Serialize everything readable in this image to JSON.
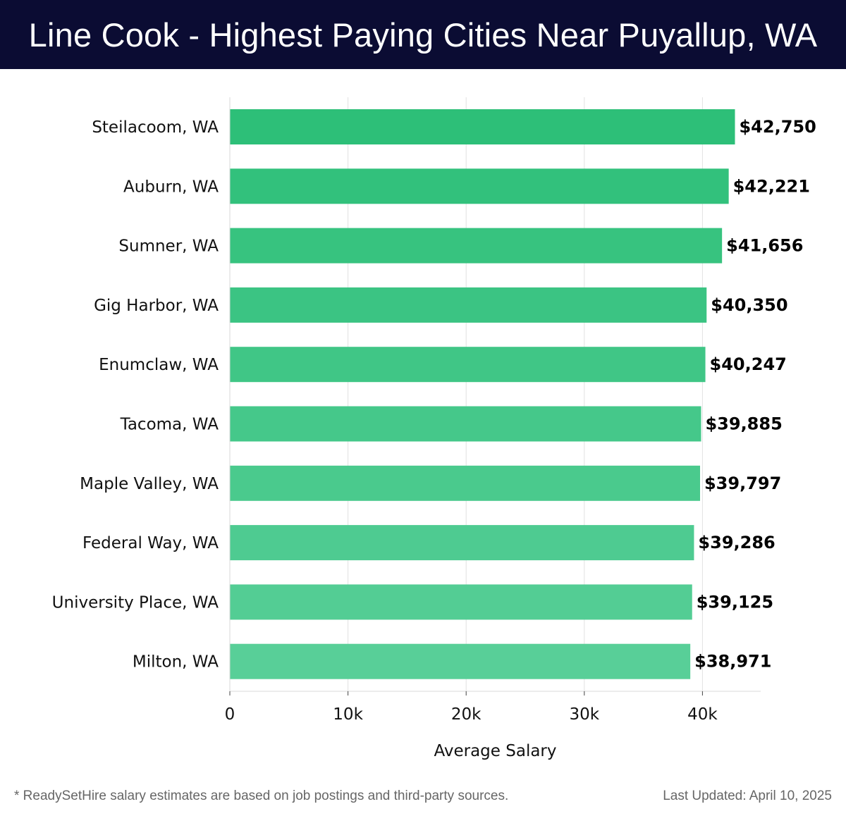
{
  "header": {
    "title": "Line Cook - Highest Paying Cities Near Puyallup, WA"
  },
  "footer": {
    "note": "* ReadySetHire salary estimates are based on job postings and third-party sources.",
    "updated": "Last Updated: April 10, 2025"
  },
  "colors": {
    "header_bg": "#0b0c33",
    "bar_top": "#2dbf78",
    "bar_bottom": "#58cf98",
    "grid": "#e2e2e2"
  },
  "chart_data": {
    "type": "bar",
    "orientation": "horizontal",
    "title": "Line Cook - Highest Paying Cities Near Puyallup, WA",
    "xlabel": "Average Salary",
    "ylabel": "",
    "xlim": [
      0,
      45000
    ],
    "xticks": [
      {
        "value": 0,
        "label": "0"
      },
      {
        "value": 10000,
        "label": "10k"
      },
      {
        "value": 20000,
        "label": "20k"
      },
      {
        "value": 30000,
        "label": "30k"
      },
      {
        "value": 40000,
        "label": "40k"
      }
    ],
    "grid": "vertical",
    "categories": [
      "Steilacoom, WA",
      "Auburn, WA",
      "Sumner, WA",
      "Gig Harbor, WA",
      "Enumclaw, WA",
      "Tacoma, WA",
      "Maple Valley, WA",
      "Federal Way, WA",
      "University Place, WA",
      "Milton, WA"
    ],
    "values": [
      42750,
      42221,
      41656,
      40350,
      40247,
      39885,
      39797,
      39286,
      39125,
      38971
    ],
    "value_labels": [
      "$42,750",
      "$42,221",
      "$41,656",
      "$40,350",
      "$40,247",
      "$39,885",
      "$39,797",
      "$39,286",
      "$39,125",
      "$38,971"
    ]
  }
}
